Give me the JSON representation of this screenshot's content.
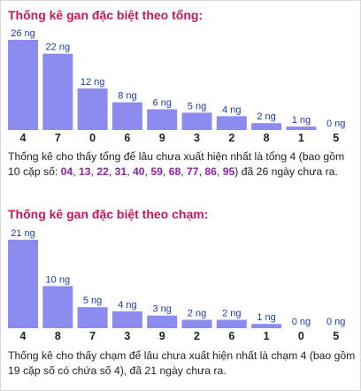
{
  "chart_data": [
    {
      "type": "bar",
      "title": "Thống kê gan đặc biệt theo tổng:",
      "categories": [
        "4",
        "7",
        "0",
        "6",
        "9",
        "3",
        "2",
        "8",
        "1",
        "5"
      ],
      "values": [
        26,
        22,
        12,
        8,
        6,
        5,
        4,
        2,
        1,
        0
      ],
      "value_labels": [
        "26 ng",
        "22 ng",
        "12 ng",
        "8 ng",
        "6 ng",
        "5 ng",
        "4 ng",
        "2 ng",
        "1 ng",
        "0 ng"
      ],
      "ylim": [
        0,
        26
      ],
      "color": "#8c8cf0",
      "description": {
        "before": "Thống kê cho thấy tổng để lâu chưa xuất hiện nhất là tổng 4 (bao gồm 10 cặp số: ",
        "pairs": [
          "04",
          "13",
          "22",
          "31",
          "40",
          "59",
          "68",
          "77",
          "86",
          "95"
        ],
        "after": ") đã 26 ngày chưa ra."
      }
    },
    {
      "type": "bar",
      "title": "Thống kê gan đặc biệt theo chạm:",
      "categories": [
        "4",
        "8",
        "7",
        "3",
        "9",
        "2",
        "6",
        "1",
        "0",
        "5"
      ],
      "values": [
        21,
        10,
        5,
        4,
        3,
        2,
        2,
        1,
        0,
        0
      ],
      "value_labels": [
        "21 ng",
        "10 ng",
        "5 ng",
        "4 ng",
        "3 ng",
        "2 ng",
        "2 ng",
        "1 ng",
        "0 ng",
        "0 ng"
      ],
      "ylim": [
        0,
        21
      ],
      "color": "#8c8cf0",
      "description": {
        "text": "Thống kê cho thấy chạm để lâu chưa xuất hiện nhất là chạm 4 (bao gồm 19 cặp số có chứa số 4), đã 21 ngày chưa ra."
      }
    }
  ]
}
